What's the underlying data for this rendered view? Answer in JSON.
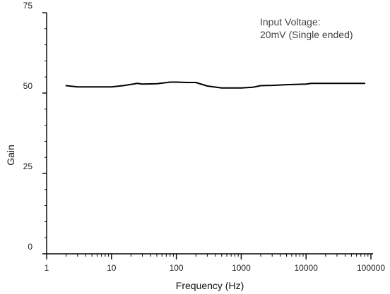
{
  "chart_data": {
    "type": "line",
    "title": "",
    "xlabel": "Frequency (Hz)",
    "ylabel": "Gain",
    "x_scale": "log",
    "xlim": [
      1,
      100000
    ],
    "ylim": [
      0,
      75
    ],
    "x_ticks": [
      1,
      10,
      100,
      1000,
      10000,
      100000
    ],
    "x_tick_labels": [
      "1",
      "10",
      "100",
      "1000",
      "10000",
      "100000"
    ],
    "y_ticks": [
      0,
      25,
      50,
      75
    ],
    "y_tick_labels": [
      "0",
      "25",
      "50",
      "75"
    ],
    "grid": false,
    "annotation": [
      "Input Voltage:",
      "20mV (Single ended)"
    ],
    "series": [
      {
        "color": "#000000",
        "x": [
          2,
          3,
          5,
          10,
          15,
          20,
          25,
          30,
          50,
          80,
          100,
          150,
          200,
          300,
          500,
          800,
          1000,
          1500,
          2000,
          3000,
          5000,
          10000,
          12000,
          20000,
          50000,
          80000
        ],
        "y": [
          52.3,
          51.9,
          51.9,
          51.9,
          52.3,
          52.7,
          53.0,
          52.8,
          52.9,
          53.4,
          53.4,
          53.3,
          53.3,
          52.2,
          51.6,
          51.6,
          51.6,
          51.8,
          52.3,
          52.4,
          52.6,
          52.8,
          53.0,
          53.0,
          53.0,
          53.0
        ]
      }
    ]
  }
}
